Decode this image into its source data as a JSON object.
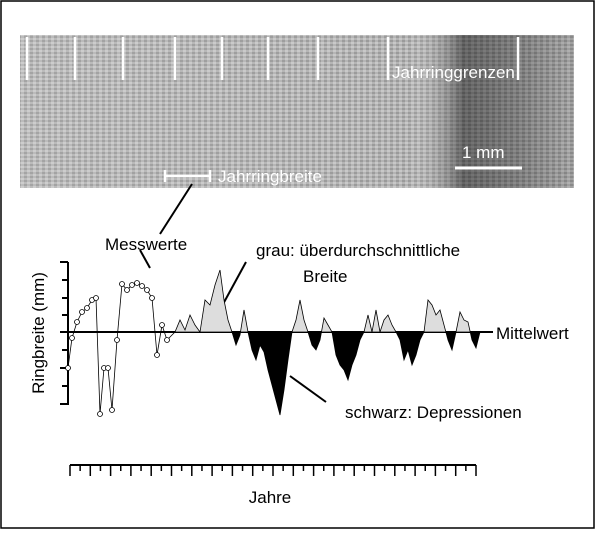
{
  "image_labels": {
    "boundaries": "Jahrringgrenzen",
    "scale": "1 mm",
    "ring_width": "Jahrringbreite"
  },
  "plot": {
    "y_axis_label": "Ringbreite (mm)",
    "x_axis_label": "Jahre",
    "mean_label": "Mittelwert"
  },
  "annotations": {
    "measurements": "Messwerte",
    "grey_line1": "grau: überdurchschnittliche",
    "grey_line2": "Breite",
    "black": "schwarz: Depressionen"
  }
}
